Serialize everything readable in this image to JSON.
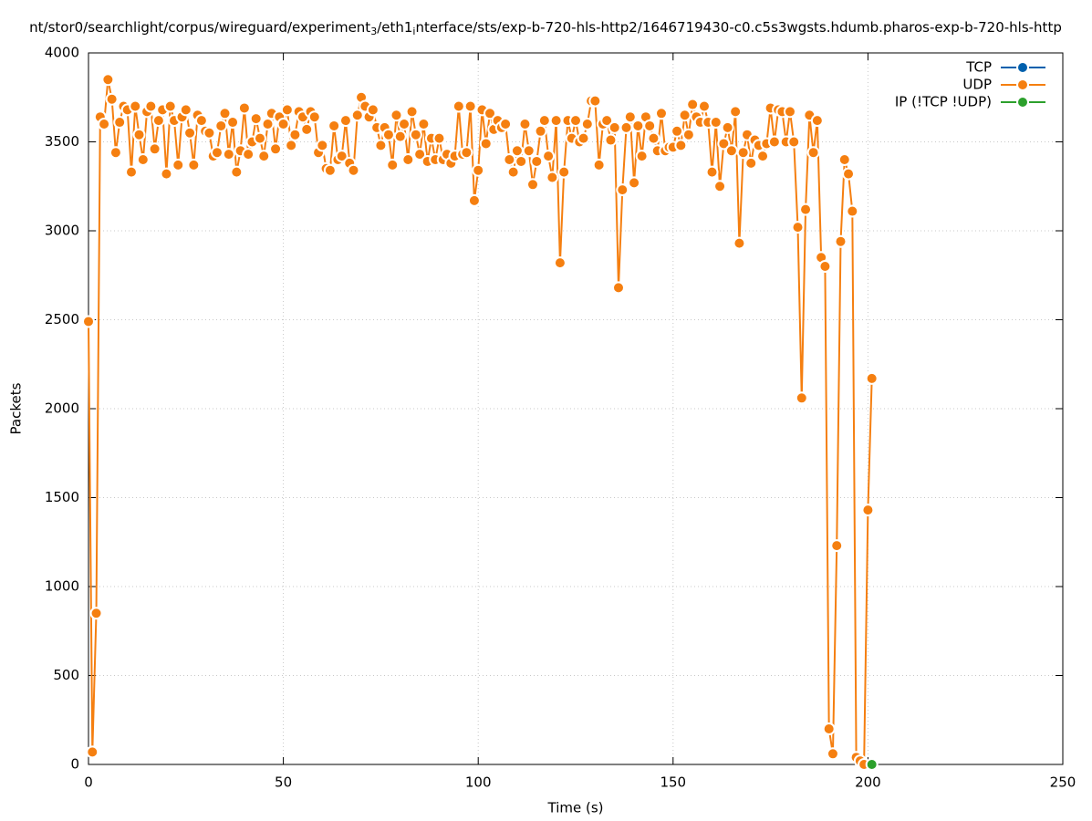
{
  "chart_data": {
    "type": "line",
    "title_parts": [
      "nt/stor0/searchlight/corpus/wireguard/experiment",
      "3",
      "/eth1",
      "i",
      "nterface/sts/exp-b-720-hls-http2/1646719430-c0.c5s3wgsts.hdumb.pharos-exp-b-720-hls-http"
    ],
    "x_label": "Time (s)",
    "y_label": "Packets",
    "xlim": [
      0,
      250
    ],
    "xticks": [
      0,
      50,
      100,
      150,
      200,
      250
    ],
    "ylim": [
      0,
      4000
    ],
    "yticks": [
      0,
      500,
      1000,
      1500,
      2000,
      2500,
      3000,
      3500,
      4000
    ],
    "grid": true,
    "legend": "top-right",
    "series": [
      {
        "name": "TCP",
        "color": "#0060ad",
        "x": [],
        "values": []
      },
      {
        "name": "UDP",
        "color": "#f57f10",
        "x": [
          0,
          1,
          2,
          3,
          4,
          5,
          6,
          7,
          8,
          9,
          10,
          11,
          12,
          13,
          14,
          15,
          16,
          17,
          18,
          19,
          20,
          21,
          22,
          23,
          24,
          25,
          26,
          27,
          28,
          29,
          30,
          31,
          32,
          33,
          34,
          35,
          36,
          37,
          38,
          39,
          40,
          41,
          42,
          43,
          44,
          45,
          46,
          47,
          48,
          49,
          50,
          51,
          52,
          53,
          54,
          55,
          56,
          57,
          58,
          59,
          60,
          61,
          62,
          63,
          64,
          65,
          66,
          67,
          68,
          69,
          70,
          71,
          72,
          73,
          74,
          75,
          76,
          77,
          78,
          79,
          80,
          81,
          82,
          83,
          84,
          85,
          86,
          87,
          88,
          89,
          90,
          91,
          92,
          93,
          94,
          95,
          96,
          97,
          98,
          99,
          100,
          101,
          102,
          103,
          104,
          105,
          106,
          107,
          108,
          109,
          110,
          111,
          112,
          113,
          114,
          115,
          116,
          117,
          118,
          119,
          120,
          121,
          122,
          123,
          124,
          125,
          126,
          127,
          128,
          129,
          130,
          131,
          132,
          133,
          134,
          135,
          136,
          137,
          138,
          139,
          140,
          141,
          142,
          143,
          144,
          145,
          146,
          147,
          148,
          149,
          150,
          151,
          152,
          153,
          154,
          155,
          156,
          157,
          158,
          159,
          160,
          161,
          162,
          163,
          164,
          165,
          166,
          167,
          168,
          169,
          170,
          171,
          172,
          173,
          174,
          175,
          176,
          177,
          178,
          179,
          180,
          181,
          182,
          183,
          184,
          185,
          186,
          187,
          188,
          189,
          190,
          191,
          192,
          193,
          194,
          195,
          196,
          197,
          198,
          199,
          200,
          201
        ],
        "values": [
          2490,
          70,
          850,
          3640,
          3600,
          3850,
          3740,
          3440,
          3610,
          3700,
          3680,
          3330,
          3700,
          3540,
          3400,
          3670,
          3700,
          3460,
          3620,
          3680,
          3320,
          3700,
          3620,
          3370,
          3640,
          3680,
          3550,
          3370,
          3650,
          3620,
          3560,
          3550,
          3420,
          3440,
          3590,
          3660,
          3430,
          3610,
          3330,
          3450,
          3690,
          3430,
          3500,
          3630,
          3520,
          3420,
          3600,
          3660,
          3460,
          3640,
          3600,
          3680,
          3480,
          3540,
          3670,
          3640,
          3570,
          3670,
          3640,
          3440,
          3480,
          3350,
          3340,
          3590,
          3400,
          3420,
          3620,
          3380,
          3340,
          3650,
          3750,
          3700,
          3640,
          3680,
          3580,
          3480,
          3580,
          3540,
          3370,
          3650,
          3530,
          3600,
          3400,
          3670,
          3540,
          3430,
          3600,
          3390,
          3520,
          3400,
          3520,
          3400,
          3430,
          3380,
          3420,
          3700,
          3430,
          3440,
          3700,
          3170,
          3340,
          3680,
          3490,
          3660,
          3570,
          3620,
          3580,
          3600,
          3400,
          3330,
          3450,
          3390,
          3600,
          3450,
          3260,
          3390,
          3560,
          3620,
          3420,
          3300,
          3620,
          2820,
          3330,
          3620,
          3520,
          3620,
          3500,
          3520,
          3600,
          3730,
          3730,
          3370,
          3600,
          3620,
          3510,
          3580,
          2680,
          3230,
          3580,
          3640,
          3270,
          3590,
          3420,
          3640,
          3590,
          3520,
          3450,
          3660,
          3450,
          3470,
          3470,
          3560,
          3480,
          3650,
          3540,
          3710,
          3640,
          3610,
          3700,
          3610,
          3330,
          3610,
          3250,
          3490,
          3580,
          3450,
          3670,
          2930,
          3440,
          3540,
          3380,
          3510,
          3480,
          3420,
          3490,
          3690,
          3500,
          3680,
          3670,
          3500,
          3670,
          3500,
          3020,
          2060,
          3120,
          3650,
          3440,
          3620,
          2850,
          2800,
          200,
          60,
          1230,
          2940,
          3400,
          3320,
          3110,
          40,
          20,
          0,
          1430,
          2170
        ]
      },
      {
        "name": "IP (!TCP  !UDP)",
        "color": "#2ca02c",
        "x": [
          201
        ],
        "values": [
          0
        ]
      }
    ]
  }
}
